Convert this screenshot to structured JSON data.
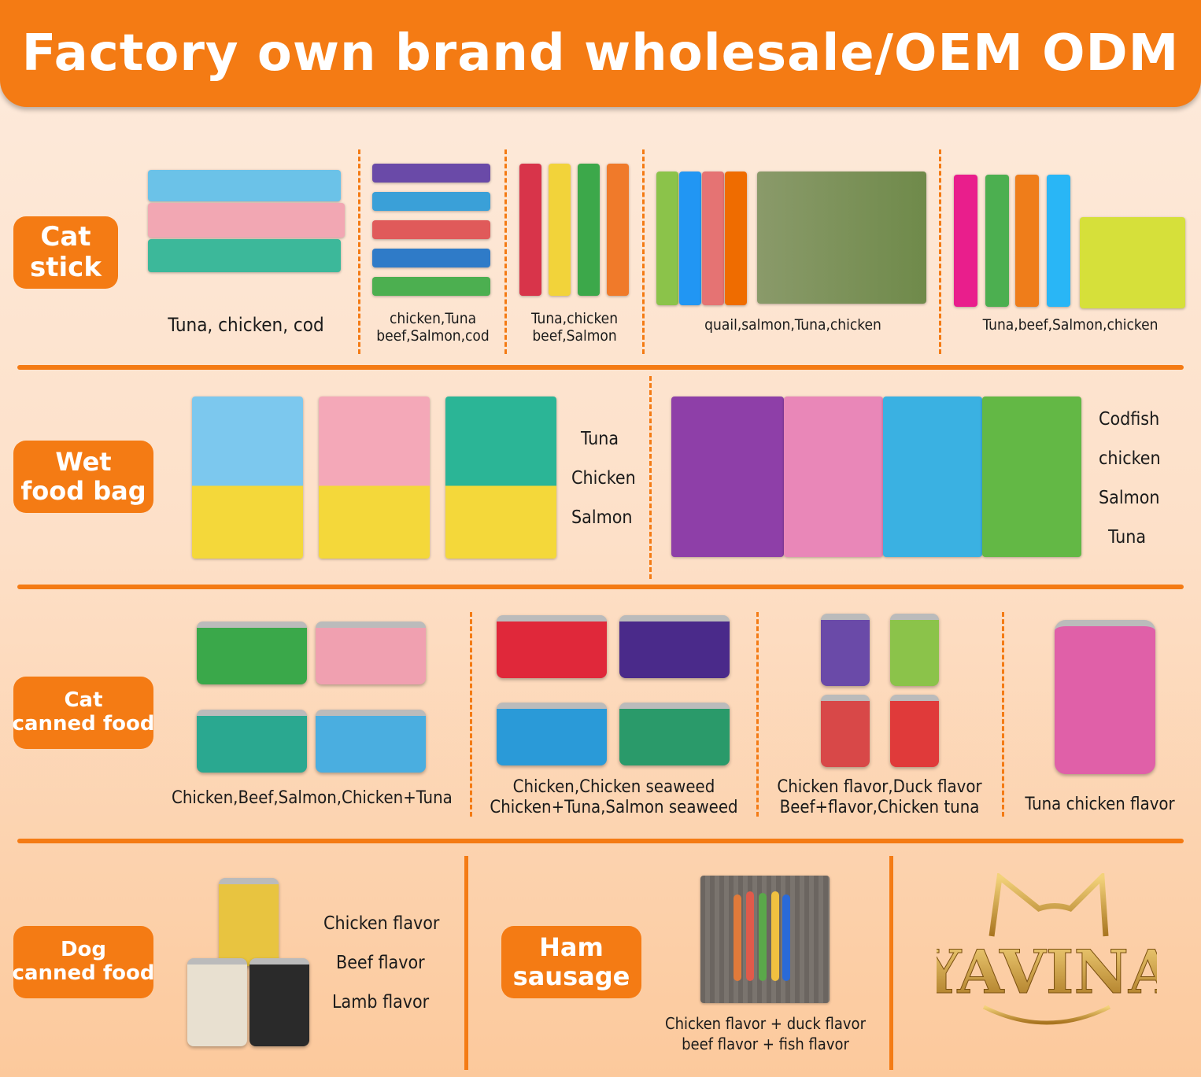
{
  "header": {
    "title": "Factory own brand wholesale/OEM ODM"
  },
  "colors": {
    "accent": "#f47b14",
    "background": "#fde6d4",
    "logo_gold": "#c9962f"
  },
  "sections": {
    "cat_stick": {
      "label": "Cat\nstick",
      "captions": [
        "Tuna, chicken, cod",
        "chicken,Tuna\nbeef,Salmon,cod",
        "Tuna,chicken\nbeef,Salmon",
        "quail,salmon,Tuna,chicken",
        "Tuna,beef,Salmon,chicken"
      ]
    },
    "wet_food_bag": {
      "label": "Wet\nfood bag",
      "flavors_left": [
        "Tuna",
        "Chicken",
        "Salmon"
      ],
      "flavors_right": [
        "Codfish",
        "chicken",
        "Salmon",
        "Tuna"
      ]
    },
    "cat_canned_food": {
      "label": "Cat\ncanned food",
      "captions": [
        "Chicken,Beef,Salmon,Chicken+Tuna",
        "Chicken,Chicken seaweed\nChicken+Tuna,Salmon seaweed",
        "Chicken flavor,Duck flavor\nBeef+flavor,Chicken tuna",
        "Tuna chicken flavor"
      ]
    },
    "dog_canned_food": {
      "label": "Dog\ncanned food",
      "flavors": [
        "Chicken flavor",
        "Beef flavor",
        "Lamb flavor"
      ]
    },
    "ham_sausage": {
      "label": "Ham\nsausage",
      "caption": "Chicken flavor + duck flavor\nbeef flavor + fish flavor"
    }
  },
  "logo": {
    "text": "YAVINA"
  }
}
